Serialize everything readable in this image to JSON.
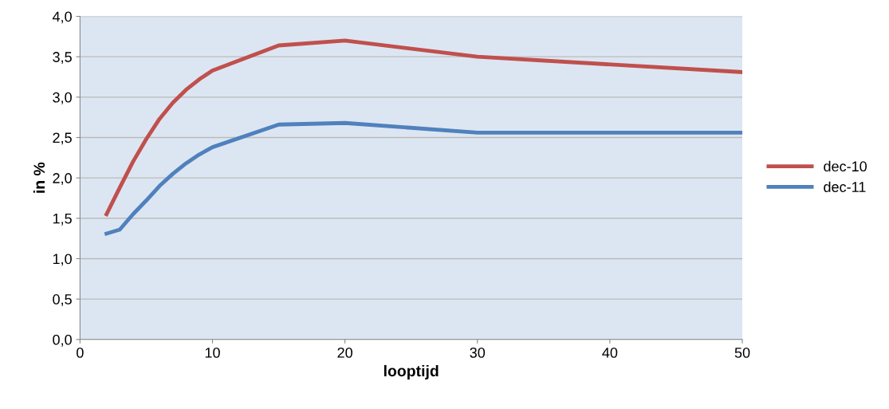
{
  "chart_data": {
    "type": "line",
    "xlabel": "looptijd",
    "ylabel": "in %",
    "xlim": [
      0,
      50
    ],
    "xticks": [
      0,
      10,
      20,
      30,
      40,
      50
    ],
    "ylim": [
      0,
      4
    ],
    "yticks": [
      {
        "value": 0,
        "label": "0,0"
      },
      {
        "value": 0.5,
        "label": "0,5"
      },
      {
        "value": 1,
        "label": "1,0"
      },
      {
        "value": 1.5,
        "label": "1,5"
      },
      {
        "value": 2,
        "label": "2,0"
      },
      {
        "value": 2.5,
        "label": "2,5"
      },
      {
        "value": 3,
        "label": "3,0"
      },
      {
        "value": 3.5,
        "label": "3,5"
      },
      {
        "value": 4,
        "label": "4,0"
      }
    ],
    "x": [
      2,
      3,
      4,
      5,
      6,
      7,
      8,
      9,
      10,
      15,
      20,
      30,
      50
    ],
    "grid": "y",
    "legend": "right",
    "marker": "none",
    "line_style": "solid",
    "series": [
      {
        "name": "dec-10",
        "color": "#c0504d",
        "values": [
          1.55,
          1.88,
          2.2,
          2.48,
          2.73,
          2.93,
          3.09,
          3.22,
          3.33,
          3.64,
          3.7,
          3.5,
          3.31
        ]
      },
      {
        "name": "dec-11",
        "color": "#4f81bd",
        "values": [
          1.31,
          1.36,
          1.55,
          1.72,
          1.9,
          2.05,
          2.18,
          2.29,
          2.38,
          2.66,
          2.68,
          2.56,
          2.56
        ]
      }
    ]
  }
}
